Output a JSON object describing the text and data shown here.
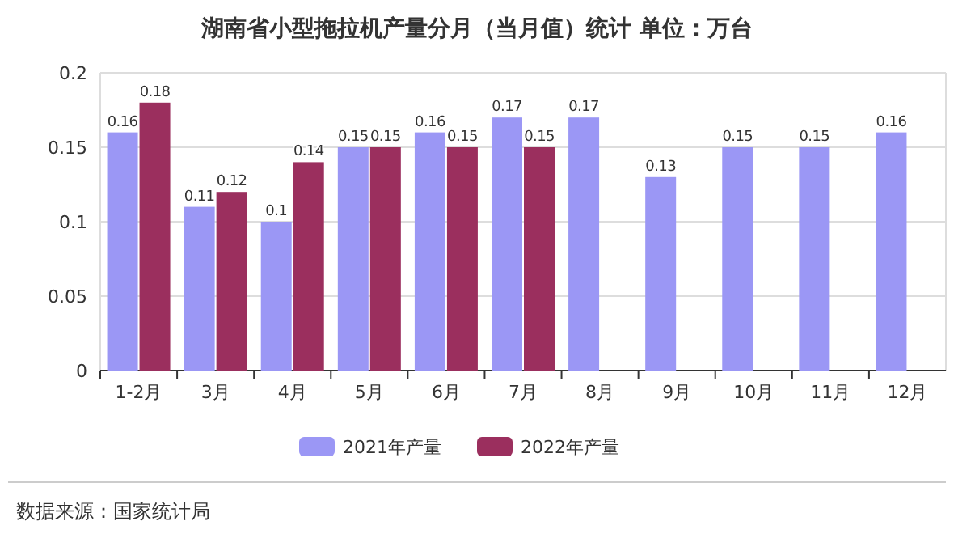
{
  "chart_data": {
    "type": "bar",
    "title": "湖南省小型拖拉机产量分月（当月值）统计  单位：万台",
    "categories": [
      "1-2月",
      "3月",
      "4月",
      "5月",
      "6月",
      "7月",
      "8月",
      "9月",
      "10月",
      "11月",
      "12月"
    ],
    "series": [
      {
        "name": "2021年产量",
        "color": "#9b97f5",
        "values": [
          0.16,
          0.11,
          0.1,
          0.15,
          0.16,
          0.17,
          0.17,
          0.13,
          0.15,
          0.15,
          0.16
        ]
      },
      {
        "name": "2022年产量",
        "color": "#9b2f5e",
        "values": [
          0.18,
          0.12,
          0.14,
          0.15,
          0.15,
          0.15,
          null,
          null,
          null,
          null,
          null
        ]
      }
    ],
    "ylim": [
      0,
      0.2
    ],
    "yticks": [
      0,
      0.05,
      0.1,
      0.15,
      0.2
    ],
    "grid": "y",
    "legend": "bottom",
    "data_labels": true,
    "annotations": [
      "数据来源：国家统计局"
    ]
  }
}
